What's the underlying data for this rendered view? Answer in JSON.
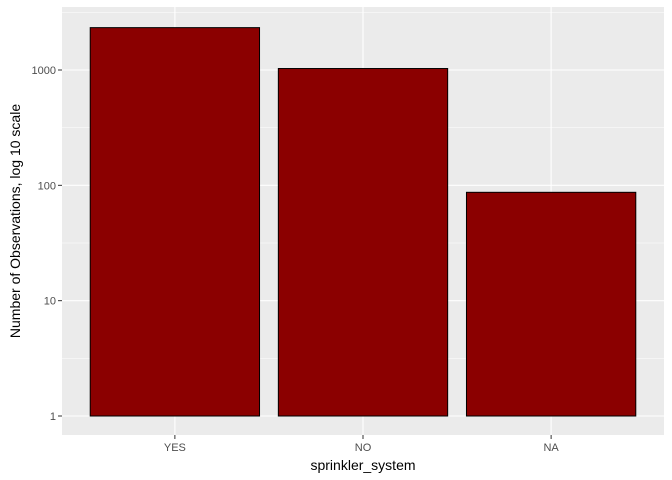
{
  "chart_data": {
    "type": "bar",
    "title": "",
    "xlabel": "sprinkler_system",
    "ylabel": "Number of Observations, log 10 scale",
    "y_scale": "log10",
    "ylim": [
      1,
      2500
    ],
    "y_ticks": [
      {
        "value": 1,
        "label": "1"
      },
      {
        "value": 10,
        "label": "10"
      },
      {
        "value": 100,
        "label": "100"
      },
      {
        "value": 1000,
        "label": "1000"
      }
    ],
    "categories": [
      "YES",
      "NO",
      "NA"
    ],
    "values": [
      2330,
      1030,
      87
    ],
    "bar_fill": "#8B0000",
    "bar_outline": "#000000",
    "panel_background": "#EBEBEB",
    "grid": true,
    "grid_color": "#FFFFFF",
    "legend": "none"
  }
}
